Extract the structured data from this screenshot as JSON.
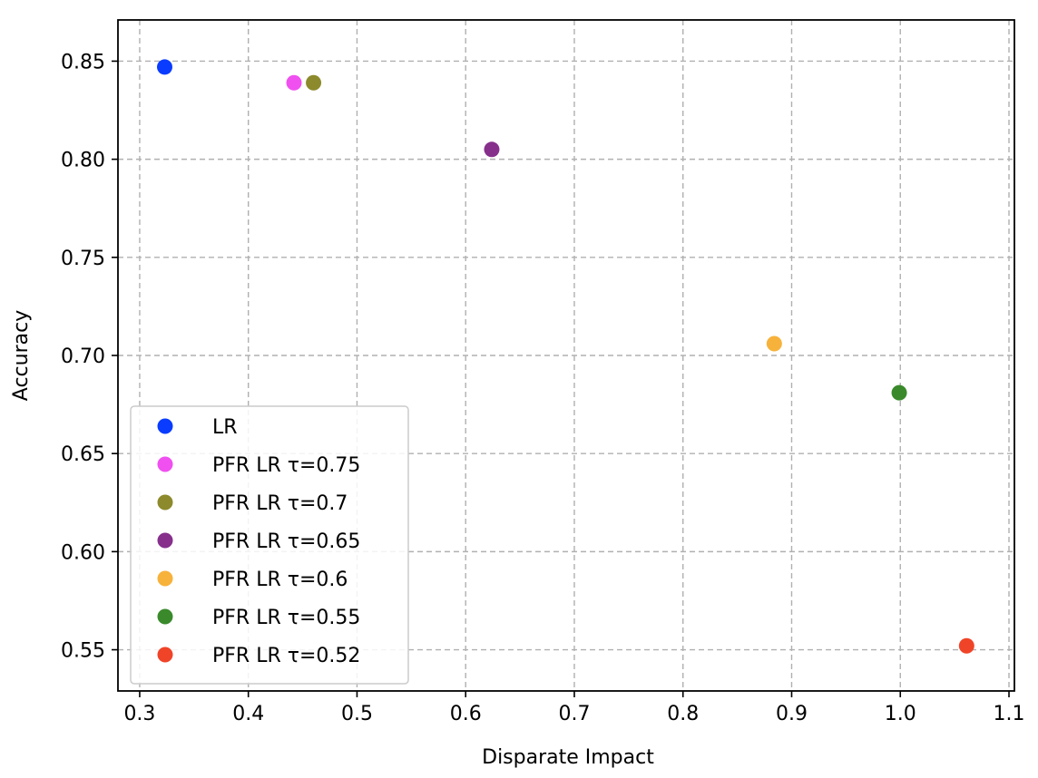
{
  "chart_data": {
    "type": "scatter",
    "title": "",
    "xlabel": "Disparate Impact",
    "ylabel": "Accuracy",
    "xlim": [
      0.28,
      1.105
    ],
    "ylim": [
      0.529,
      0.871
    ],
    "grid": true,
    "legend_position": "lower-left",
    "x_ticks": [
      0.3,
      0.4,
      0.5,
      0.6,
      0.7,
      0.8,
      0.9,
      1.0,
      1.1
    ],
    "x_tick_labels": [
      "0.3",
      "0.4",
      "0.5",
      "0.6",
      "0.7",
      "0.8",
      "0.9",
      "1.0",
      "1.1"
    ],
    "y_ticks": [
      0.55,
      0.6,
      0.65,
      0.7,
      0.75,
      0.8,
      0.85
    ],
    "y_tick_labels": [
      "0.55",
      "0.60",
      "0.65",
      "0.70",
      "0.75",
      "0.80",
      "0.85"
    ],
    "series": [
      {
        "name": "LR",
        "color": "#0a3cff",
        "x": [
          0.323
        ],
        "y": [
          0.847
        ]
      },
      {
        "name": "PFR LR τ=0.75",
        "color": "#f050f0",
        "x": [
          0.442
        ],
        "y": [
          0.839
        ]
      },
      {
        "name": "PFR LR τ=0.7",
        "color": "#8c8a2c",
        "x": [
          0.46
        ],
        "y": [
          0.839
        ]
      },
      {
        "name": "PFR LR τ=0.65",
        "color": "#86308c",
        "x": [
          0.624
        ],
        "y": [
          0.805
        ]
      },
      {
        "name": "PFR LR τ=0.6",
        "color": "#f7b23b",
        "x": [
          0.884
        ],
        "y": [
          0.706
        ]
      },
      {
        "name": "PFR LR τ=0.55",
        "color": "#3a8a2c",
        "x": [
          0.999
        ],
        "y": [
          0.681
        ]
      },
      {
        "name": "PFR LR τ=0.52",
        "color": "#f04428",
        "x": [
          1.061
        ],
        "y": [
          0.552
        ]
      }
    ]
  }
}
